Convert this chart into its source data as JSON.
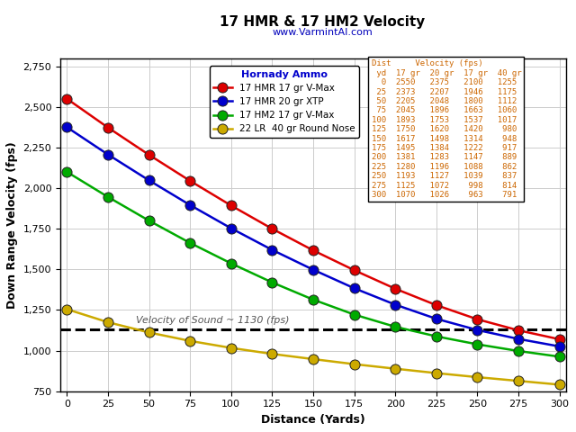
{
  "title": "17 HMR & 17 HM2 Velocity",
  "subtitle": "www.VarmintAI.com",
  "xlabel": "Distance (Yards)",
  "ylabel": "Down Range Velocity (fps)",
  "distances": [
    0,
    25,
    50,
    75,
    100,
    125,
    150,
    175,
    200,
    225,
    250,
    275,
    300
  ],
  "series": [
    {
      "key": "17 HMR 17 gr V-Max",
      "values": [
        2550,
        2373,
        2205,
        2045,
        1893,
        1750,
        1617,
        1495,
        1381,
        1280,
        1193,
        1125,
        1070
      ],
      "color": "#dd0000",
      "label": "17 HMR 17 gr V-Max"
    },
    {
      "key": "17 HMR 20 gr XTP",
      "values": [
        2375,
        2207,
        2048,
        1896,
        1753,
        1620,
        1498,
        1384,
        1283,
        1196,
        1127,
        1072,
        1026
      ],
      "color": "#0000cc",
      "label": "17 HMR 20 gr XTP"
    },
    {
      "key": "17 HM2 17 gr V-Max",
      "values": [
        2100,
        1946,
        1800,
        1663,
        1537,
        1420,
        1314,
        1222,
        1147,
        1088,
        1039,
        998,
        963
      ],
      "color": "#00aa00",
      "label": "17 HM2 17 gr V-Max"
    },
    {
      "key": "22 LR  40 gr Round Nose",
      "values": [
        1255,
        1175,
        1112,
        1060,
        1017,
        980,
        948,
        917,
        889,
        862,
        837,
        814,
        791
      ],
      "color": "#ccaa00",
      "label": "22 LR  40 gr Round Nose"
    }
  ],
  "sound_speed": 1130,
  "sound_label": "Velocity of Sound ~ 1130 (fps)",
  "ylim": [
    750,
    2800
  ],
  "yticks": [
    750,
    1000,
    1250,
    1500,
    1750,
    2000,
    2250,
    2500,
    2750
  ],
  "xticks": [
    0,
    25,
    50,
    75,
    100,
    125,
    150,
    175,
    200,
    225,
    250,
    275,
    300
  ],
  "bg_color": "#ffffff",
  "plot_bg_color": "#ffffff",
  "grid_color": "#cccccc",
  "table_data": [
    [
      0,
      2550,
      2375,
      2100,
      1255
    ],
    [
      25,
      2373,
      2207,
      1946,
      1175
    ],
    [
      50,
      2205,
      2048,
      1800,
      1112
    ],
    [
      75,
      2045,
      1896,
      1663,
      1060
    ],
    [
      100,
      1893,
      1753,
      1537,
      1017
    ],
    [
      125,
      1750,
      1620,
      1420,
      980
    ],
    [
      150,
      1617,
      1498,
      1314,
      948
    ],
    [
      175,
      1495,
      1384,
      1222,
      917
    ],
    [
      200,
      1381,
      1283,
      1147,
      889
    ],
    [
      225,
      1280,
      1196,
      1088,
      862
    ],
    [
      250,
      1193,
      1127,
      1039,
      837
    ],
    [
      275,
      1125,
      1072,
      998,
      814
    ],
    [
      300,
      1070,
      1026,
      963,
      791
    ]
  ],
  "table_text_color": "#cc6600",
  "table_header_color": "#0000cc",
  "sound_text_color": "#555555",
  "title_fontsize": 11,
  "subtitle_fontsize": 8,
  "axis_label_fontsize": 9,
  "tick_fontsize": 8,
  "legend_fontsize": 7.5,
  "legend_title_fontsize": 8,
  "table_fontsize": 6.5,
  "marker_size": 8,
  "line_width": 1.8
}
